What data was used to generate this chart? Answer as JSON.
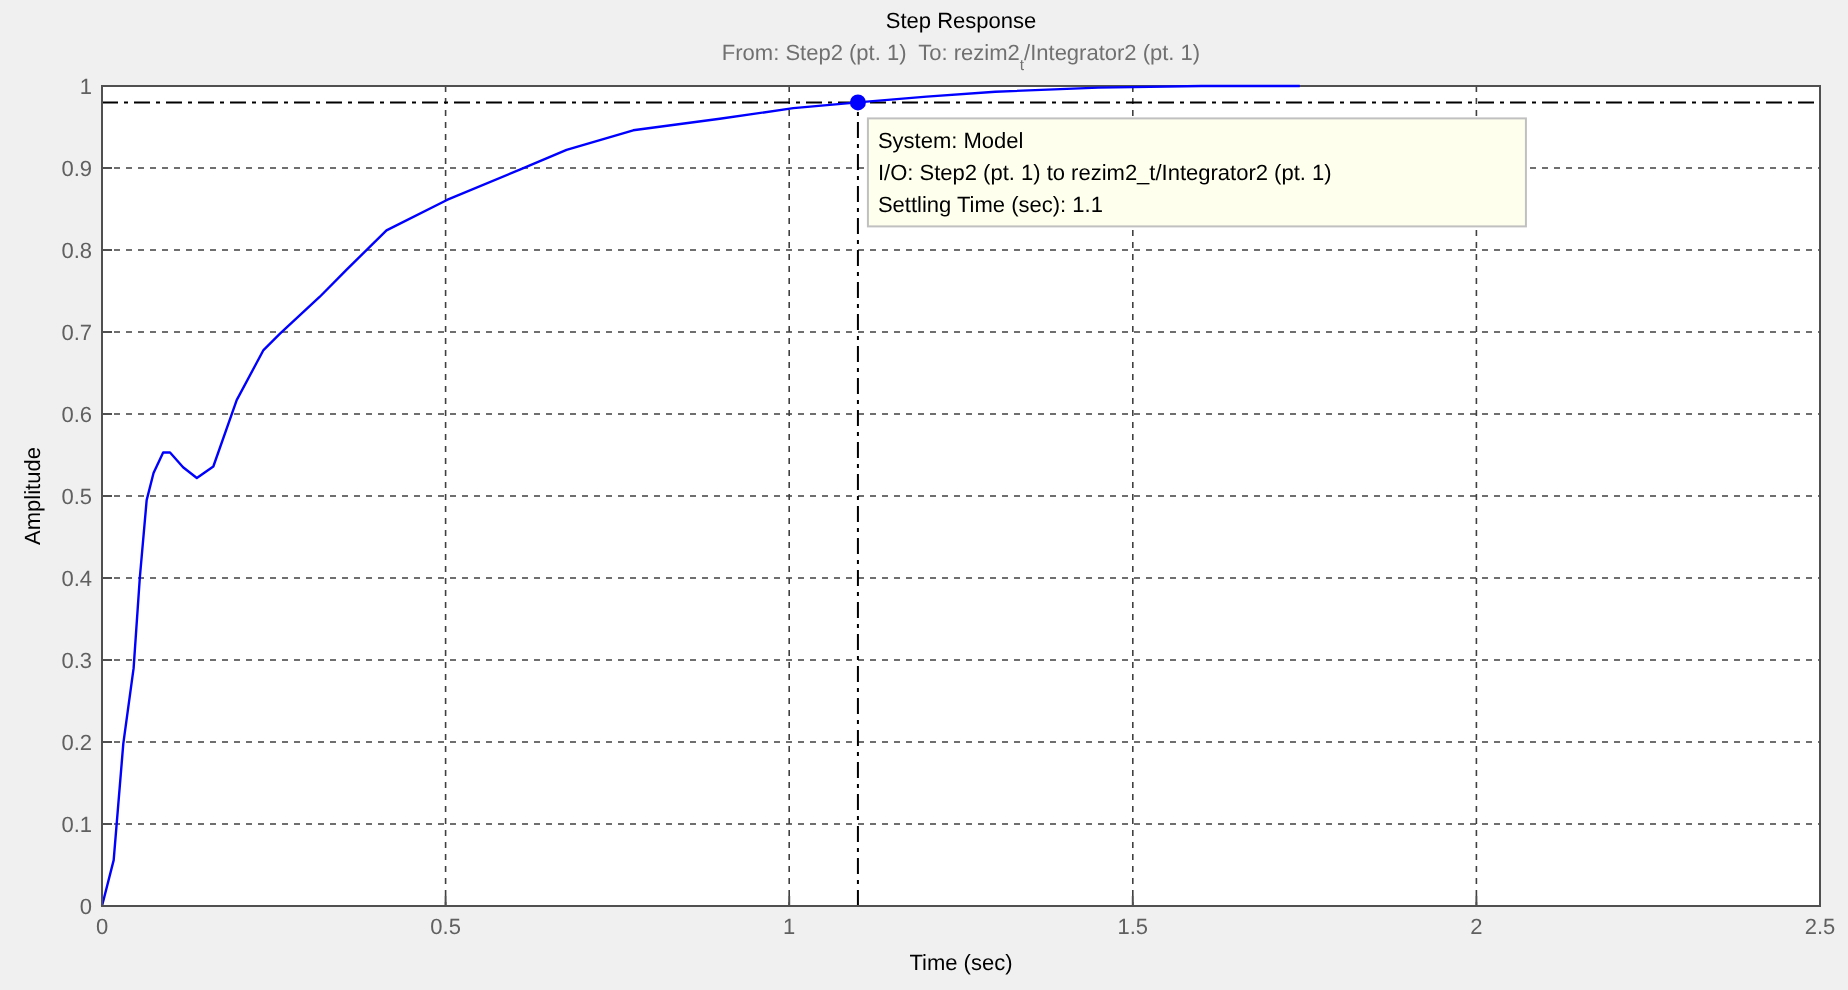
{
  "chart_data": {
    "type": "line",
    "title": "Step Response",
    "subtitle": "From: Step2 (pt. 1)  To: rezim2$_{t}$/Integrator2 (pt. 1)",
    "xlabel": "Time (sec)",
    "ylabel": "Amplitude",
    "xlim": [
      0,
      2.5
    ],
    "xticks": [
      0,
      0.5,
      1,
      1.5,
      2,
      2.5
    ],
    "ylim": [
      0,
      1
    ],
    "yticks": [
      0,
      0.1,
      0.2,
      0.3,
      0.4,
      0.5,
      0.6,
      0.7,
      0.8,
      0.9,
      1
    ],
    "grid": true,
    "series": [
      {
        "color": "#0000ff",
        "x": [
          0,
          0.017,
          0.031,
          0.046,
          0.055,
          0.065,
          0.075,
          0.089,
          0.099,
          0.118,
          0.138,
          0.162,
          0.196,
          0.235,
          0.259,
          0.317,
          0.356,
          0.414,
          0.502,
          0.608,
          0.676,
          0.773,
          0.899,
          1.006,
          1.1,
          1.2,
          1.3,
          1.45,
          1.6,
          1.743
        ],
        "values": [
          0,
          0.056,
          0.198,
          0.29,
          0.4,
          0.495,
          0.528,
          0.553,
          0.553,
          0.535,
          0.522,
          0.536,
          0.617,
          0.678,
          0.698,
          0.743,
          0.776,
          0.824,
          0.861,
          0.898,
          0.922,
          0.946,
          0.96,
          0.973,
          0.98,
          0.987,
          0.993,
          0.998,
          1,
          1
        ]
      },
      {
        "type": "scatter",
        "color": "#0000ff",
        "marker": "circle",
        "x": [
          1.1
        ],
        "values": [
          0.98
        ]
      }
    ],
    "ref_lines": [
      {
        "axis": "y",
        "value": 0.98,
        "color": "#000000",
        "line_style": "dashdot"
      },
      {
        "axis": "x",
        "value": 1.1,
        "color": "#000000",
        "line_style": "dashdot"
      }
    ],
    "annotations": [
      {
        "text": "System: Model\nI/O: Step2 (pt. 1) to rezim2_t/Integrator2 (pt. 1)\nSettling Time (sec): 1.1",
        "x": 1.1,
        "y": 0.98
      }
    ]
  }
}
